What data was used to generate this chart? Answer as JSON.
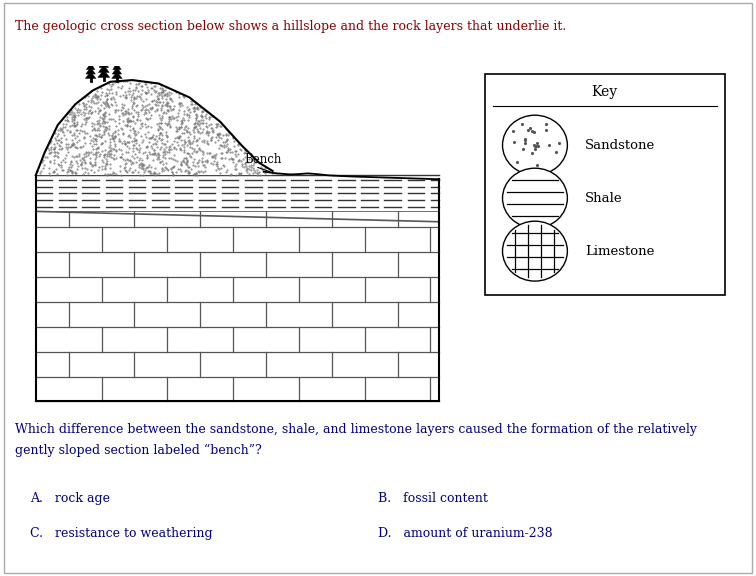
{
  "title_text": "The geologic cross section below shows a hillslope and the rock layers that underlie it.",
  "title_color": "#8B0000",
  "title_fontsize": 9.0,
  "question_text": "Which difference between the sandstone, shale, and limestone layers caused the formation of the relatively\ngently sloped section labeled “bench”?",
  "question_color": "#000080",
  "question_fontsize": 9.0,
  "answer_A": "A.   rock age",
  "answer_B": "B.   fossil content",
  "answer_C": "C.   resistance to weathering",
  "answer_D": "D.   amount of uranium-238",
  "answer_color": "#000080",
  "answer_fontsize": 9.0,
  "key_title": "Key",
  "key_labels": [
    "Sandstone",
    "Shale",
    "Limestone"
  ],
  "bg_color": "#ffffff",
  "bench_label": "Bench"
}
